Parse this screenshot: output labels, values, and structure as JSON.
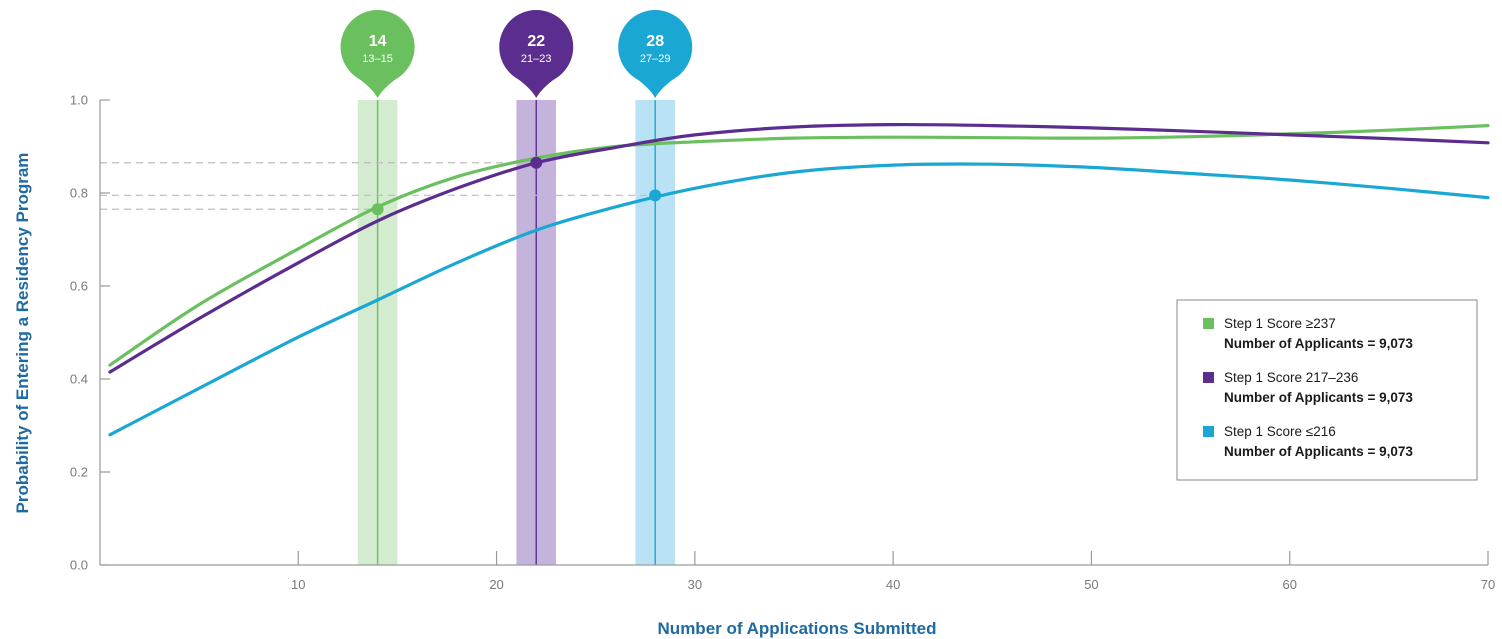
{
  "chart_data": {
    "type": "line",
    "title": "",
    "xlabel": "Number of Applications Submitted",
    "ylabel": "Probability of Entering a Residency Program",
    "xlim": [
      0,
      70
    ],
    "ylim": [
      0,
      1.0
    ],
    "x_ticks": [
      10,
      20,
      30,
      40,
      50,
      60,
      70
    ],
    "y_ticks": [
      0.0,
      0.2,
      0.4,
      0.6,
      0.8,
      1.0
    ],
    "x_tick_labels": [
      "10",
      "20",
      "30",
      "40",
      "50",
      "60",
      "70"
    ],
    "y_tick_labels": [
      "0.0",
      "0.2",
      "0.4",
      "0.6",
      "0.8",
      "1.0"
    ],
    "grid": false,
    "legend_position": "right",
    "series": [
      {
        "name": "Step 1 Score ≥237",
        "subtitle": "Number of Applicants = 9,073",
        "color": "#6abf5e",
        "x": [
          0.5,
          5,
          10,
          14,
          18,
          22,
          26,
          30,
          35,
          40,
          45,
          50,
          55,
          60,
          65,
          70
        ],
        "y": [
          0.43,
          0.56,
          0.68,
          0.77,
          0.835,
          0.875,
          0.9,
          0.91,
          0.918,
          0.92,
          0.919,
          0.918,
          0.921,
          0.927,
          0.935,
          0.945
        ]
      },
      {
        "name": "Step 1 Score 217–236",
        "subtitle": "Number of Applicants = 9,073",
        "color": "#5b2d8e",
        "x": [
          0.5,
          5,
          10,
          14,
          18,
          22,
          26,
          30,
          35,
          40,
          45,
          50,
          55,
          60,
          65,
          70
        ],
        "y": [
          0.415,
          0.53,
          0.65,
          0.74,
          0.81,
          0.865,
          0.898,
          0.925,
          0.942,
          0.947,
          0.945,
          0.94,
          0.933,
          0.925,
          0.917,
          0.908
        ]
      },
      {
        "name": "Step 1 Score ≤216",
        "subtitle": "Number of Applicants = 9,073",
        "color": "#1aa7d4",
        "x": [
          0.5,
          5,
          10,
          14,
          18,
          22,
          26,
          30,
          35,
          40,
          45,
          50,
          55,
          60,
          65,
          70
        ],
        "y": [
          0.28,
          0.38,
          0.49,
          0.57,
          0.65,
          0.72,
          0.77,
          0.81,
          0.845,
          0.86,
          0.862,
          0.855,
          0.842,
          0.828,
          0.81,
          0.79
        ]
      }
    ],
    "annotations": [
      {
        "label": "14",
        "range": "13–15",
        "x": 14,
        "x_min": 13,
        "x_max": 15,
        "y": 0.765,
        "color": "#6abf5e",
        "band_color": "#d3ebcf"
      },
      {
        "label": "22",
        "range": "21–23",
        "x": 22,
        "x_min": 21,
        "x_max": 23,
        "y": 0.865,
        "color": "#5b2d8e",
        "band_color": "#c4b3db"
      },
      {
        "label": "28",
        "range": "27–29",
        "x": 28,
        "x_min": 27,
        "x_max": 29,
        "y": 0.795,
        "color": "#1aa7d4",
        "band_color": "#b9e3f4"
      }
    ]
  }
}
